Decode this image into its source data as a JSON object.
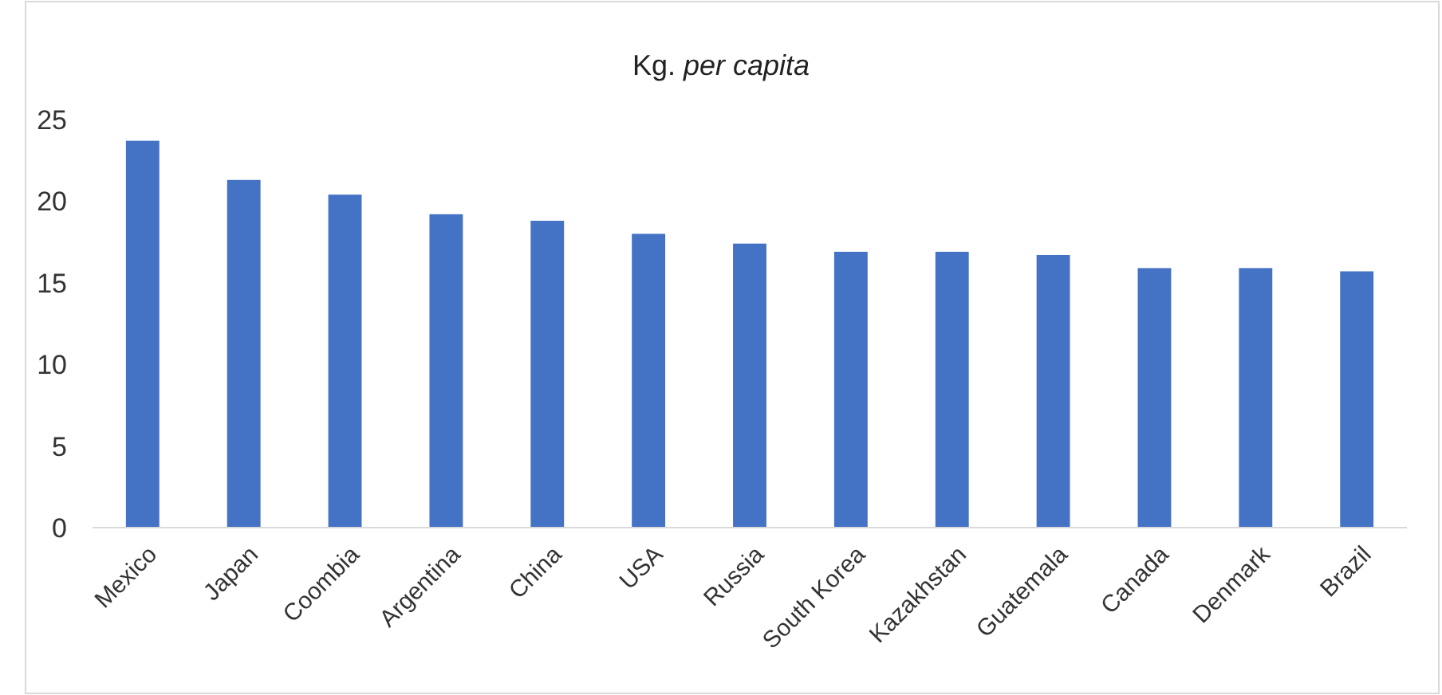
{
  "chart_data": {
    "type": "bar",
    "title": "Kg. per capita",
    "categories": [
      "Mexico",
      "Japan",
      "Coombia",
      "Argentina",
      "China",
      "USA",
      "Russia",
      "South Korea",
      "Kazakhstan",
      "Guatemala",
      "Canada",
      "Denmark",
      "Brazil"
    ],
    "values": [
      23.7,
      21.3,
      20.4,
      19.2,
      18.8,
      18.0,
      17.4,
      16.9,
      16.9,
      16.7,
      15.9,
      15.9,
      15.7
    ],
    "color": "#4472c4",
    "ylim": [
      0,
      25
    ],
    "yticks": [
      0,
      5,
      10,
      15,
      20,
      25
    ],
    "grid": false
  }
}
